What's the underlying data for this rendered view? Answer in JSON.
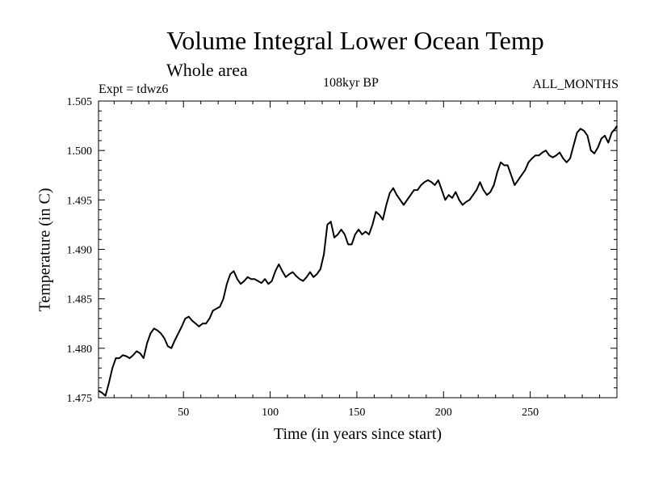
{
  "chart_data": {
    "type": "line",
    "title": "Volume Integral Lower Ocean Temp",
    "subtitle": "Whole area",
    "experiment_label": "Expt = tdwz6",
    "period_label": "108kyr BP",
    "months_label": "ALL_MONTHS",
    "xlabel": "Time (in years since start)",
    "ylabel": "Temperature (in C)",
    "xlim": [
      1,
      300
    ],
    "ylim": [
      1.475,
      1.505
    ],
    "x_ticks": [
      50,
      100,
      150,
      200,
      250
    ],
    "y_ticks": [
      "1.475",
      "1.480",
      "1.485",
      "1.490",
      "1.495",
      "1.500",
      "1.505"
    ],
    "grid": false,
    "line_color": "#000000",
    "series": [
      {
        "x": [
          1,
          3,
          5,
          7,
          9,
          11,
          13,
          15,
          17,
          19,
          21,
          23,
          25,
          27,
          29,
          31,
          33,
          35,
          37,
          39,
          41,
          43,
          45,
          47,
          49,
          51,
          53,
          55,
          57,
          59,
          61,
          63,
          65,
          67,
          69,
          71,
          73,
          75,
          77,
          79,
          81,
          83,
          85,
          87,
          89,
          91,
          93,
          95,
          97,
          99,
          101,
          103,
          105,
          107,
          109,
          111,
          113,
          115,
          117,
          119,
          121,
          123,
          125,
          127,
          129,
          131,
          133,
          135,
          137,
          139,
          141,
          143,
          145,
          147,
          149,
          151,
          153,
          155,
          157,
          159,
          161,
          163,
          165,
          167,
          169,
          171,
          173,
          175,
          177,
          179,
          181,
          183,
          185,
          187,
          189,
          191,
          193,
          195,
          197,
          199,
          201,
          203,
          205,
          207,
          209,
          211,
          213,
          215,
          217,
          219,
          221,
          223,
          225,
          227,
          229,
          231,
          233,
          235,
          237,
          239,
          241,
          243,
          245,
          247,
          249,
          251,
          253,
          255,
          257,
          259,
          261,
          263,
          265,
          267,
          269,
          271,
          273,
          275,
          277,
          279,
          281,
          283,
          285,
          287,
          289,
          291,
          293,
          295,
          297,
          299,
          300
        ],
        "y": [
          1.4757,
          1.4755,
          1.4752,
          1.4765,
          1.478,
          1.479,
          1.479,
          1.4793,
          1.4792,
          1.479,
          1.4793,
          1.4797,
          1.4795,
          1.479,
          1.4805,
          1.4815,
          1.482,
          1.4818,
          1.4815,
          1.481,
          1.4802,
          1.48,
          1.4808,
          1.4815,
          1.4822,
          1.483,
          1.4832,
          1.4828,
          1.4825,
          1.4822,
          1.4825,
          1.4825,
          1.483,
          1.4838,
          1.484,
          1.4842,
          1.485,
          1.4865,
          1.4875,
          1.4878,
          1.487,
          1.4865,
          1.4868,
          1.4872,
          1.487,
          1.487,
          1.4868,
          1.4866,
          1.487,
          1.4865,
          1.4868,
          1.4878,
          1.4885,
          1.4878,
          1.4872,
          1.4875,
          1.4877,
          1.4873,
          1.487,
          1.4868,
          1.4872,
          1.4877,
          1.4872,
          1.4875,
          1.488,
          1.4895,
          1.4925,
          1.4928,
          1.4912,
          1.4915,
          1.492,
          1.4915,
          1.4905,
          1.4905,
          1.4915,
          1.492,
          1.4915,
          1.4918,
          1.4915,
          1.4925,
          1.4938,
          1.4935,
          1.493,
          1.4945,
          1.4957,
          1.4962,
          1.4955,
          1.495,
          1.4945,
          1.495,
          1.4955,
          1.496,
          1.496,
          1.4965,
          1.4968,
          1.497,
          1.4968,
          1.4965,
          1.497,
          1.496,
          1.495,
          1.4955,
          1.4952,
          1.4958,
          1.495,
          1.4945,
          1.4948,
          1.495,
          1.4955,
          1.496,
          1.4968,
          1.496,
          1.4955,
          1.4958,
          1.4965,
          1.4978,
          1.4988,
          1.4985,
          1.4985,
          1.4975,
          1.4965,
          1.497,
          1.4975,
          1.498,
          1.4988,
          1.4992,
          1.4995,
          1.4995,
          1.4998,
          1.5,
          1.4995,
          1.4993,
          1.4995,
          1.4998,
          1.4992,
          1.4988,
          1.4992,
          1.5005,
          1.5018,
          1.5022,
          1.502,
          1.5015,
          1.5,
          1.4997,
          1.5003,
          1.5012,
          1.5015,
          1.5008,
          1.5018,
          1.5022,
          1.5025
        ]
      }
    ]
  }
}
